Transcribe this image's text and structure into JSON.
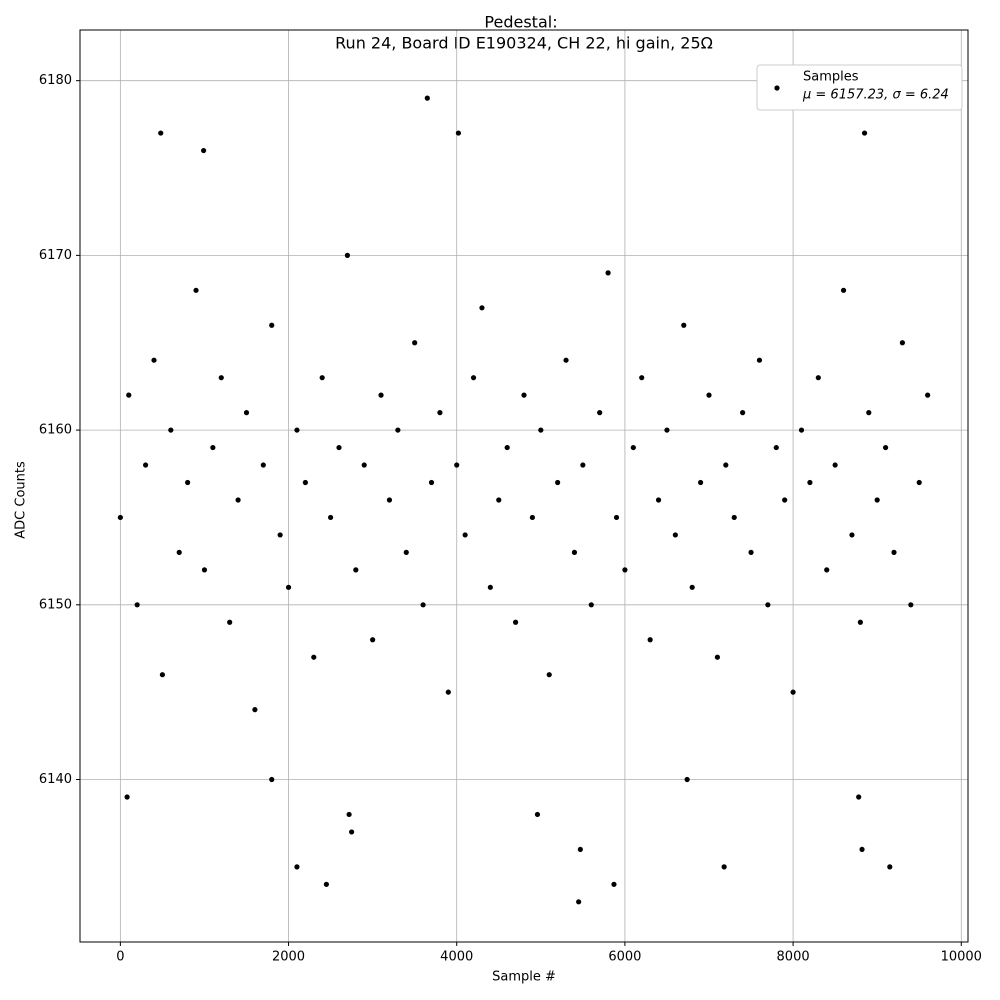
{
  "chart_data": {
    "type": "scatter",
    "title": "Pedestal:",
    "subtitle": "Run 24, Board ID E190324, CH 22, hi gain, 25Ω",
    "x_label": "Sample #",
    "y_label": "ADC Counts",
    "xlim": [
      -480,
      10080
    ],
    "ylim": [
      6130.7,
      6182.9
    ],
    "xticks": [
      0,
      2000,
      4000,
      6000,
      8000,
      10000
    ],
    "yticks": [
      6140,
      6150,
      6160,
      6170,
      6180
    ],
    "grid": true,
    "legend_position": "upper right",
    "series": [
      {
        "name": "Samples",
        "label": "μ = 6157.23, σ = 6.24",
        "color": "#000000",
        "x": [
          0,
          100,
          200,
          300,
          400,
          500,
          600,
          700,
          800,
          900,
          1000,
          1100,
          1200,
          1300,
          1400,
          1500,
          1600,
          1700,
          1800,
          1900,
          2000,
          2100,
          2200,
          2300,
          2400,
          2500,
          2600,
          2700,
          2800,
          2900,
          3000,
          3100,
          3200,
          3300,
          3400,
          3500,
          3600,
          3700,
          3800,
          3900,
          4000,
          4100,
          4200,
          4300,
          4400,
          4500,
          4600,
          4700,
          4800,
          4900,
          5000,
          5100,
          5200,
          5300,
          5400,
          5500,
          5600,
          5700,
          5800,
          5900,
          6000,
          6100,
          6200,
          6300,
          6400,
          6500,
          6600,
          6700,
          6800,
          6900,
          7000,
          7100,
          7200,
          7300,
          7400,
          7500,
          7600,
          7700,
          7800,
          7900,
          8000,
          8100,
          8200,
          8300,
          8400,
          8500,
          8600,
          8700,
          8800,
          8900,
          9000,
          9100,
          9200,
          9300,
          9400,
          9500,
          9600,
          80,
          2100,
          2450,
          2750,
          3650,
          4020,
          5450,
          5470,
          5870,
          7180,
          8820,
          9150,
          480,
          990,
          8850,
          8780,
          1800,
          6740,
          2720,
          4960
        ],
        "values": [
          6155,
          6162,
          6150,
          6158,
          6164,
          6146,
          6160,
          6153,
          6157,
          6168,
          6152,
          6159,
          6163,
          6149,
          6156,
          6161,
          6144,
          6158,
          6166,
          6154,
          6151,
          6160,
          6157,
          6147,
          6163,
          6155,
          6159,
          6170,
          6152,
          6158,
          6148,
          6162,
          6156,
          6160,
          6153,
          6165,
          6150,
          6157,
          6161,
          6145,
          6158,
          6154,
          6163,
          6167,
          6151,
          6156,
          6159,
          6149,
          6162,
          6155,
          6160,
          6146,
          6157,
          6164,
          6153,
          6158,
          6150,
          6161,
          6169,
          6155,
          6152,
          6159,
          6163,
          6148,
          6156,
          6160,
          6154,
          6166,
          6151,
          6157,
          6162,
          6147,
          6158,
          6155,
          6161,
          6153,
          6164,
          6150,
          6159,
          6156,
          6145,
          6160,
          6157,
          6163,
          6152,
          6158,
          6168,
          6154,
          6149,
          6161,
          6156,
          6159,
          6153,
          6165,
          6150,
          6157,
          6162,
          6139,
          6135,
          6134,
          6137,
          6179,
          6177,
          6133,
          6136,
          6134,
          6135,
          6136,
          6135,
          6177,
          6176,
          6177,
          6139,
          6140,
          6140,
          6138,
          6138
        ]
      }
    ]
  }
}
